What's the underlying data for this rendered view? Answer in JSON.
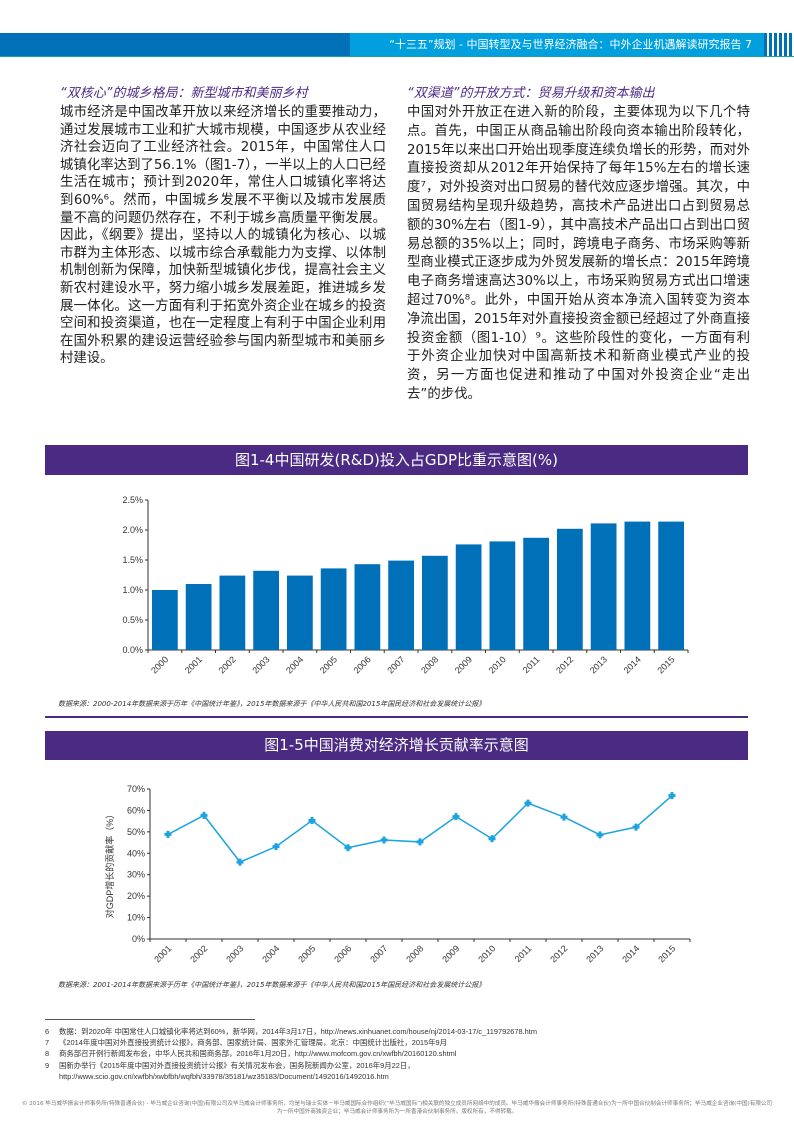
{
  "header": {
    "title": "“十三五”规划 - 中国转型及与世界经济融合：中外企业机遇解读研究报告",
    "page": "7"
  },
  "left": {
    "heading": "“双核心”的城乡格局：新型城市和美丽乡村",
    "body": "城市经济是中国改革开放以来经济增长的重要推动力，通过发展城市工业和扩大城市规模，中国逐步从农业经济社会迈向了工业经济社会。2015年，中国常住人口城镇化率达到了56.1%（图1-7），一半以上的人口已经生活在城市；预计到2020年，常住人口城镇化率将达到60%⁶。然而，中国城乡发展不平衡以及城市发展质量不高的问题仍然存在，不利于城乡高质量平衡发展。因此，《纲要》提出，坚持以人的城镇化为核心、以城市群为主体形态、以城市综合承载能力为支撑、以体制机制创新为保障，加快新型城镇化步伐，提高社会主义新农村建设水平，努力缩小城乡发展差距，推进城乡发展一体化。这一方面有利于拓宽外资企业在城乡的投资空间和投资渠道，也在一定程度上有利于中国企业利用在国外积累的建设运营经验参与国内新型城市和美丽乡村建设。"
  },
  "right": {
    "heading": "“双渠道”的开放方式：贸易升级和资本输出",
    "body": "中国对外开放正在进入新的阶段，主要体现为以下几个特点。首先，中国正从商品输出阶段向资本输出阶段转化，2015年以来出口开始出现季度连续负增长的形势，而对外直接投资却从2012年开始保持了每年15%左右的增长速度⁷，对外投资对出口贸易的替代效应逐步增强。其次，中国贸易结构呈现升级趋势，高技术产品进出口占到贸易总额的30%左右（图1-9），其中高技术产品出口占到出口贸易总额的35%以上；同时，跨境电子商务、市场采购等新型商业模式正逐步成为外贸发展新的增长点：2015年跨境电子商务增速高达30%以上，市场采购贸易方式出口增速超过70%⁸。此外，中国开始从资本净流入国转变为资本净流出国，2015年对外直接投资金额已经超过了外商直接投资金额（图1-10）⁹。这些阶段性的变化，一方面有利于外资企业加快对中国高新技术和新商业模式产业的投资，另一方面也促进和推动了中国对外投资企业“走出去”的步伐。"
  },
  "chart_data": [
    {
      "type": "bar",
      "title": "图1-4中国研发(R&D)投入占GDP比重示意图(%)",
      "categories": [
        "2000",
        "2001",
        "2002",
        "2003",
        "2004",
        "2005",
        "2006",
        "2007",
        "2008",
        "2009",
        "2010",
        "2011",
        "2012",
        "2013",
        "2014",
        "2015"
      ],
      "values": [
        1.0,
        1.1,
        1.24,
        1.32,
        1.24,
        1.36,
        1.43,
        1.49,
        1.57,
        1.76,
        1.81,
        1.87,
        2.02,
        2.11,
        2.14,
        2.14
      ],
      "yticks": [
        "0.0%",
        "0.5%",
        "1.0%",
        "1.5%",
        "2.0%",
        "2.5%"
      ],
      "ylim": [
        0,
        2.5
      ],
      "ylabel": "",
      "xlabel": "",
      "color": "#0070b8",
      "source": "数据来源：2000-2014年数据来源于历年《中国统计年鉴》，2015年数据来源于《中华人民共和国2015年国民经济和社会发展统计公报》"
    },
    {
      "type": "line",
      "title": "图1-5中国消费对经济增长贡献率示意图",
      "categories": [
        "2001",
        "2002",
        "2003",
        "2004",
        "2005",
        "2006",
        "2007",
        "2008",
        "2009",
        "2010",
        "2011",
        "2012",
        "2013",
        "2014",
        "2015"
      ],
      "values": [
        48.8,
        57.7,
        35.9,
        43.1,
        55.3,
        42.6,
        46.2,
        45.3,
        57.1,
        46.8,
        63.4,
        56.9,
        48.6,
        52.2,
        66.9
      ],
      "yticks": [
        "0%",
        "10%",
        "20%",
        "30%",
        "40%",
        "50%",
        "60%",
        "70%"
      ],
      "ylim": [
        0,
        70
      ],
      "ylabel": "对GDP增长的贡献率（%）",
      "xlabel": "",
      "color": "#1aa3e0",
      "source": "数据来源：2001-2014年数据来源于历年《中国统计年鉴》，2015年数据来源于《中华人民共和国2015年国民经济和社会发展统计公报》"
    }
  ],
  "footnotes": [
    {
      "n": "6",
      "text": "数据：到2020年 中国常住人口城镇化率将达到60%，新华网，2014年3月17日，http://news.xinhuanet.com/house/nj/2014-03-17/c_119792678.htm"
    },
    {
      "n": "7",
      "text": "《2014年度中国对外直接投资统计公报》，商务部、国家统计局、国家外汇管理局，北京：中国统计出版社，2015年9月"
    },
    {
      "n": "8",
      "text": "商务部召开例行新闻发布会，中华人民共和国商务部，2016年1月20日，http://www.mofcom.gov.cn/xwfbh/20160120.shtml"
    },
    {
      "n": "9",
      "text": "国新办举行《2015年度中国对外直接投资统计公报》有关情况发布会，国务院新闻办公室，2016年9月22日，"
    },
    {
      "n": "",
      "text": "http://www.scio.gov.cn/xwfbh/xwbfbh/wqfbh/33978/35181/wz35183/Document/1492016/1492016.htm"
    }
  ],
  "copyright": "© 2016 毕马威华振会计师事务所(特殊普通合伙) - 毕马威企业咨询(中国)有限公司及毕马威会计师事务所，均是与瑞士实体－毕马威国际合作组织(“毕马威国际”)相关联的独立成员所网络中的成员。毕马威华振会计师事务所(特殊普通合伙)为一所中国合伙制会计师事务所；毕马威企业咨询(中国)有限公司为一所中国外商独资企业；毕马威会计师事务所为一所香港合伙制事务所。版权所有，不得转载。"
}
